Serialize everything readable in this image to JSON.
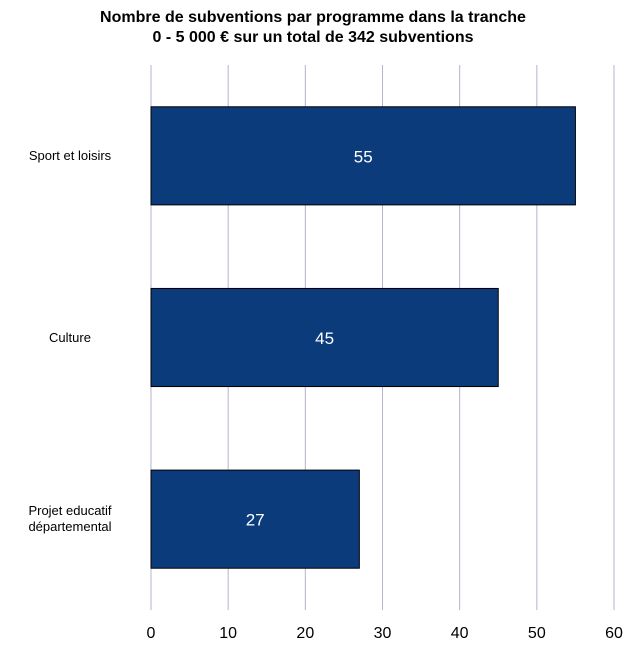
{
  "chart_data": {
    "type": "barh",
    "title": "Nombre de subventions par programme dans la tranche\n0 - 5 000 € sur un total de 342 subventions",
    "categories": [
      "Sport et loisirs",
      "Culture",
      "Projet educatif\ndépartemental"
    ],
    "values": [
      55,
      45,
      27
    ],
    "color": "#0c3b7c",
    "xlim": [
      0,
      60
    ],
    "xticks": [
      0,
      10,
      20,
      30,
      40,
      50,
      60
    ],
    "grid": true
  }
}
